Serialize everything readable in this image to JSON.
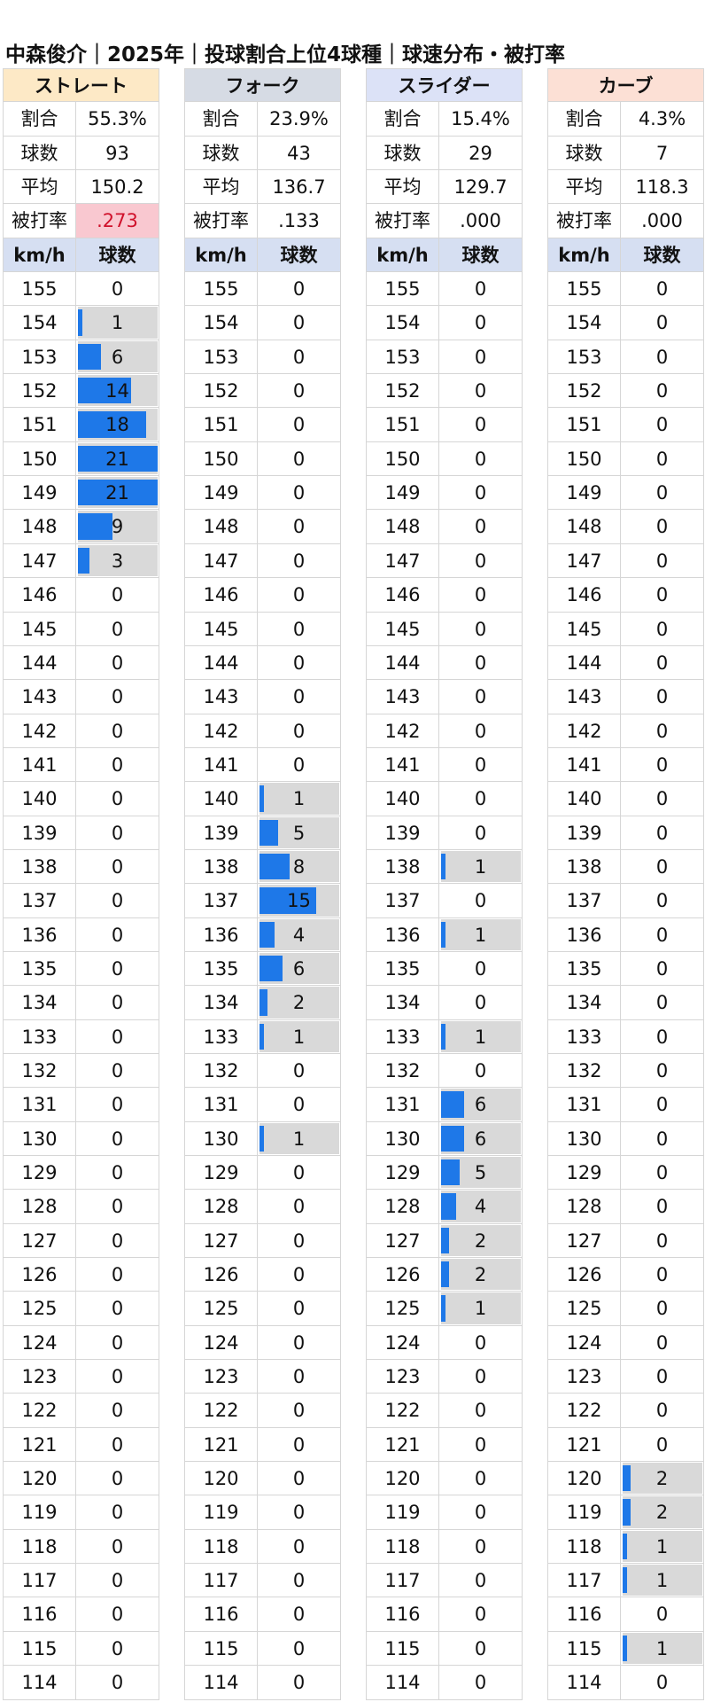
{
  "title": "中森俊介｜2025年｜投球割合上位4球種｜球速分布・被打率",
  "labels": {
    "ratio": "割合",
    "count": "球数",
    "avg": "平均",
    "batting": "被打率",
    "speed_unit": "km/h",
    "pitch_count": "球数"
  },
  "colors": {
    "bar": "#1e78e8",
    "bar_bg": "#d9d9d9",
    "highlight_bg": "#f9c8d0",
    "highlight_text": "#d0112b"
  },
  "chart_data": {
    "type": "bar",
    "speeds": [
      155,
      154,
      153,
      152,
      151,
      150,
      149,
      148,
      147,
      146,
      145,
      144,
      143,
      142,
      141,
      140,
      139,
      138,
      137,
      136,
      135,
      134,
      133,
      132,
      131,
      130,
      129,
      128,
      127,
      126,
      125,
      124,
      123,
      122,
      121,
      120,
      119,
      118,
      117,
      116,
      115,
      114
    ],
    "max_count": 21,
    "pitches": [
      {
        "name": "ストレート",
        "header_color": "#fde9c6",
        "ratio": "55.3%",
        "count": "93",
        "avg": "150.2",
        "batting": ".273",
        "batting_highlight": true,
        "counts": [
          0,
          1,
          6,
          14,
          18,
          21,
          21,
          9,
          3,
          0,
          0,
          0,
          0,
          0,
          0,
          0,
          0,
          0,
          0,
          0,
          0,
          0,
          0,
          0,
          0,
          0,
          0,
          0,
          0,
          0,
          0,
          0,
          0,
          0,
          0,
          0,
          0,
          0,
          0,
          0,
          0,
          0
        ]
      },
      {
        "name": "フォーク",
        "header_color": "#d6dbe4",
        "ratio": "23.9%",
        "count": "43",
        "avg": "136.7",
        "batting": ".133",
        "batting_highlight": false,
        "counts": [
          0,
          0,
          0,
          0,
          0,
          0,
          0,
          0,
          0,
          0,
          0,
          0,
          0,
          0,
          0,
          1,
          5,
          8,
          15,
          4,
          6,
          2,
          1,
          0,
          0,
          1,
          0,
          0,
          0,
          0,
          0,
          0,
          0,
          0,
          0,
          0,
          0,
          0,
          0,
          0,
          0,
          0
        ]
      },
      {
        "name": "スライダー",
        "header_color": "#dce2f7",
        "ratio": "15.4%",
        "count": "29",
        "avg": "129.7",
        "batting": ".000",
        "batting_highlight": false,
        "counts": [
          0,
          0,
          0,
          0,
          0,
          0,
          0,
          0,
          0,
          0,
          0,
          0,
          0,
          0,
          0,
          0,
          0,
          1,
          0,
          1,
          0,
          0,
          1,
          0,
          6,
          6,
          5,
          4,
          2,
          2,
          1,
          0,
          0,
          0,
          0,
          0,
          0,
          0,
          0,
          0,
          0,
          0
        ]
      },
      {
        "name": "カーブ",
        "header_color": "#fce0d5",
        "ratio": "4.3%",
        "count": "7",
        "avg": "118.3",
        "batting": ".000",
        "batting_highlight": false,
        "counts": [
          0,
          0,
          0,
          0,
          0,
          0,
          0,
          0,
          0,
          0,
          0,
          0,
          0,
          0,
          0,
          0,
          0,
          0,
          0,
          0,
          0,
          0,
          0,
          0,
          0,
          0,
          0,
          0,
          0,
          0,
          0,
          0,
          0,
          0,
          0,
          2,
          2,
          1,
          1,
          0,
          1,
          0
        ]
      }
    ]
  }
}
